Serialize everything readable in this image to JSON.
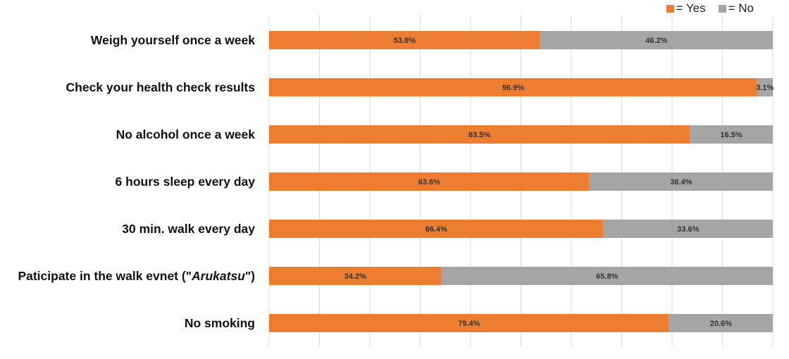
{
  "chart_data": {
    "type": "bar",
    "orientation": "horizontal",
    "stacked": true,
    "title": "",
    "xlabel": "",
    "ylabel": "",
    "xlim": [
      0,
      100
    ],
    "grid": true,
    "legend_position": "top-right",
    "categories": [
      "Weigh yourself once a week",
      "Check your health check results",
      "No alcohol once a week",
      "6 hours sleep every day",
      "30 min. walk every day",
      "Paticipate in the walk evnet (\"Arukatsu\")",
      "No smoking"
    ],
    "series": [
      {
        "name": "= Yes",
        "color": "#ED7D31",
        "values": [
          53.8,
          96.9,
          83.5,
          63.6,
          66.4,
          34.2,
          79.4
        ],
        "labels": [
          "53.8%",
          "96.9%",
          "83.5%",
          "63.6%",
          "66.4%",
          "34.2%",
          "79.4%"
        ]
      },
      {
        "name": "= No",
        "color": "#A5A5A5",
        "values": [
          46.2,
          3.1,
          16.5,
          36.4,
          33.6,
          65.8,
          20.6
        ],
        "labels": [
          "46.2%",
          "3.1%",
          "16.5%",
          "36.4%",
          "33.6%",
          "65.8%",
          "20.6%"
        ]
      }
    ]
  }
}
